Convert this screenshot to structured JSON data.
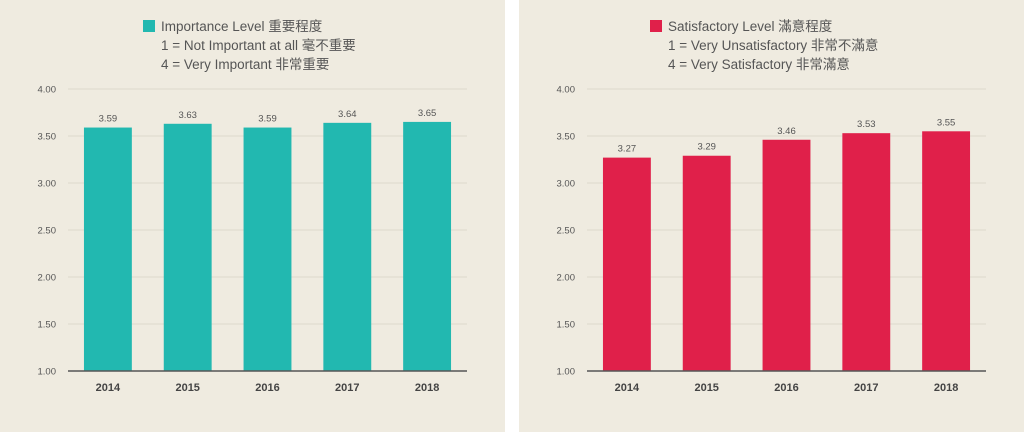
{
  "chart_data": [
    {
      "type": "bar",
      "legend_title": "Importance Level 重要程度",
      "legend_lines": [
        "1 = Not Important at all 毫不重要",
        "4 = Very Important 非常重要"
      ],
      "color": "#22b8b0",
      "categories": [
        "2014",
        "2015",
        "2016",
        "2017",
        "2018"
      ],
      "values": [
        3.59,
        3.63,
        3.59,
        3.64,
        3.65
      ],
      "value_labels": [
        "3.59",
        "3.63",
        "3.59",
        "3.64",
        "3.65"
      ],
      "ylim": [
        1.0,
        4.0
      ],
      "yticks": [
        "1.00",
        "1.50",
        "2.00",
        "2.50",
        "3.00",
        "3.50",
        "4.00"
      ],
      "grid": true,
      "legend_position": "top-center"
    },
    {
      "type": "bar",
      "legend_title": "Satisfactory Level 滿意程度",
      "legend_lines": [
        "1 = Very Unsatisfactory 非常不滿意",
        "4 = Very Satisfactory 非常滿意"
      ],
      "color": "#e0204a",
      "categories": [
        "2014",
        "2015",
        "2016",
        "2017",
        "2018"
      ],
      "values": [
        3.27,
        3.29,
        3.46,
        3.53,
        3.55
      ],
      "value_labels": [
        "3.27",
        "3.29",
        "3.46",
        "3.53",
        "3.55"
      ],
      "ylim": [
        1.0,
        4.0
      ],
      "yticks": [
        "1.00",
        "1.50",
        "2.00",
        "2.50",
        "3.00",
        "3.50",
        "4.00"
      ],
      "grid": true,
      "legend_position": "top-center"
    }
  ]
}
